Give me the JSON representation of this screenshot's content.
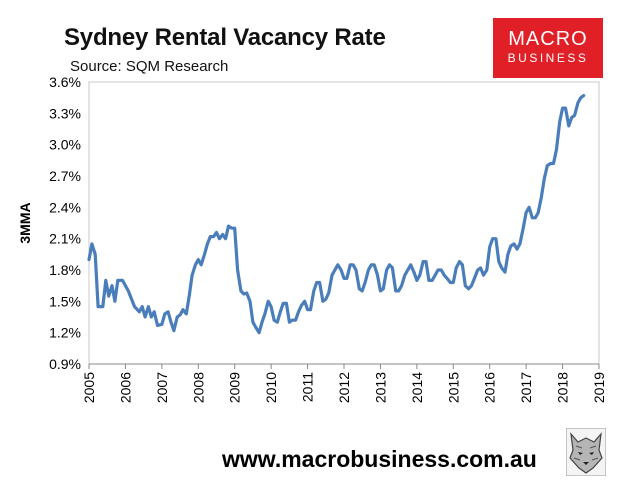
{
  "header": {
    "title": "Sydney Rental Vacancy Rate",
    "subtitle": "Source: SQM Research"
  },
  "logo": {
    "line1": "MACRO",
    "line2": "BUSINESS",
    "bg_color": "#e01f26"
  },
  "footer": {
    "url": "www.macrobusiness.com.au",
    "icon": "wolf-icon"
  },
  "chart_data": {
    "type": "line",
    "title": "Sydney Rental Vacancy Rate",
    "ylabel": "3MMA",
    "xlabel": "",
    "ylim": [
      0.9,
      3.6
    ],
    "y_ticks": [
      "0.9%",
      "1.2%",
      "1.5%",
      "1.8%",
      "2.1%",
      "2.4%",
      "2.7%",
      "3.0%",
      "3.3%",
      "3.6%"
    ],
    "x_ticks": [
      "2005",
      "2006",
      "2007",
      "2008",
      "2009",
      "2010",
      "2011",
      "2012",
      "2013",
      "2014",
      "2015",
      "2016",
      "2017",
      "2018",
      "2019"
    ],
    "xlim": [
      2005,
      2019
    ],
    "grid": false,
    "line_color": "#4a7ebb",
    "series": [
      {
        "values": [
          [
            2005.0,
            1.9
          ],
          [
            2005.08,
            2.05
          ],
          [
            2005.17,
            1.95
          ],
          [
            2005.25,
            1.45
          ],
          [
            2005.38,
            1.45
          ],
          [
            2005.46,
            1.7
          ],
          [
            2005.54,
            1.55
          ],
          [
            2005.63,
            1.65
          ],
          [
            2005.71,
            1.5
          ],
          [
            2005.79,
            1.7
          ],
          [
            2005.92,
            1.7
          ],
          [
            2006.08,
            1.6
          ],
          [
            2006.25,
            1.45
          ],
          [
            2006.38,
            1.4
          ],
          [
            2006.46,
            1.45
          ],
          [
            2006.54,
            1.35
          ],
          [
            2006.63,
            1.45
          ],
          [
            2006.71,
            1.35
          ],
          [
            2006.79,
            1.4
          ],
          [
            2006.88,
            1.27
          ],
          [
            2007.0,
            1.28
          ],
          [
            2007.08,
            1.38
          ],
          [
            2007.17,
            1.4
          ],
          [
            2007.25,
            1.3
          ],
          [
            2007.33,
            1.22
          ],
          [
            2007.42,
            1.35
          ],
          [
            2007.5,
            1.37
          ],
          [
            2007.58,
            1.42
          ],
          [
            2007.67,
            1.38
          ],
          [
            2007.75,
            1.55
          ],
          [
            2007.83,
            1.75
          ],
          [
            2007.92,
            1.85
          ],
          [
            2008.0,
            1.9
          ],
          [
            2008.08,
            1.85
          ],
          [
            2008.17,
            1.95
          ],
          [
            2008.25,
            2.05
          ],
          [
            2008.33,
            2.12
          ],
          [
            2008.42,
            2.12
          ],
          [
            2008.5,
            2.16
          ],
          [
            2008.58,
            2.1
          ],
          [
            2008.67,
            2.14
          ],
          [
            2008.75,
            2.1
          ],
          [
            2008.83,
            2.22
          ],
          [
            2008.92,
            2.2
          ],
          [
            2009.0,
            2.2
          ],
          [
            2009.08,
            1.8
          ],
          [
            2009.17,
            1.6
          ],
          [
            2009.25,
            1.57
          ],
          [
            2009.33,
            1.58
          ],
          [
            2009.42,
            1.5
          ],
          [
            2009.5,
            1.3
          ],
          [
            2009.58,
            1.25
          ],
          [
            2009.67,
            1.2
          ],
          [
            2009.75,
            1.3
          ],
          [
            2009.83,
            1.38
          ],
          [
            2009.92,
            1.5
          ],
          [
            2010.0,
            1.45
          ],
          [
            2010.08,
            1.32
          ],
          [
            2010.17,
            1.3
          ],
          [
            2010.25,
            1.4
          ],
          [
            2010.33,
            1.48
          ],
          [
            2010.42,
            1.48
          ],
          [
            2010.5,
            1.3
          ],
          [
            2010.58,
            1.32
          ],
          [
            2010.67,
            1.32
          ],
          [
            2010.75,
            1.4
          ],
          [
            2010.83,
            1.46
          ],
          [
            2010.92,
            1.5
          ],
          [
            2011.0,
            1.42
          ],
          [
            2011.08,
            1.42
          ],
          [
            2011.17,
            1.6
          ],
          [
            2011.25,
            1.68
          ],
          [
            2011.33,
            1.68
          ],
          [
            2011.42,
            1.5
          ],
          [
            2011.5,
            1.52
          ],
          [
            2011.58,
            1.58
          ],
          [
            2011.67,
            1.75
          ],
          [
            2011.75,
            1.8
          ],
          [
            2011.83,
            1.85
          ],
          [
            2011.92,
            1.8
          ],
          [
            2012.0,
            1.72
          ],
          [
            2012.08,
            1.72
          ],
          [
            2012.17,
            1.85
          ],
          [
            2012.25,
            1.85
          ],
          [
            2012.33,
            1.8
          ],
          [
            2012.42,
            1.62
          ],
          [
            2012.5,
            1.6
          ],
          [
            2012.58,
            1.68
          ],
          [
            2012.67,
            1.8
          ],
          [
            2012.75,
            1.85
          ],
          [
            2012.83,
            1.85
          ],
          [
            2012.92,
            1.75
          ],
          [
            2013.0,
            1.6
          ],
          [
            2013.08,
            1.62
          ],
          [
            2013.17,
            1.8
          ],
          [
            2013.25,
            1.85
          ],
          [
            2013.33,
            1.82
          ],
          [
            2013.42,
            1.6
          ],
          [
            2013.5,
            1.6
          ],
          [
            2013.58,
            1.65
          ],
          [
            2013.67,
            1.75
          ],
          [
            2013.75,
            1.8
          ],
          [
            2013.83,
            1.85
          ],
          [
            2013.92,
            1.78
          ],
          [
            2014.0,
            1.7
          ],
          [
            2014.08,
            1.75
          ],
          [
            2014.17,
            1.88
          ],
          [
            2014.25,
            1.88
          ],
          [
            2014.33,
            1.7
          ],
          [
            2014.42,
            1.7
          ],
          [
            2014.5,
            1.75
          ],
          [
            2014.58,
            1.8
          ],
          [
            2014.67,
            1.8
          ],
          [
            2014.75,
            1.75
          ],
          [
            2014.83,
            1.72
          ],
          [
            2014.92,
            1.68
          ],
          [
            2015.0,
            1.68
          ],
          [
            2015.08,
            1.82
          ],
          [
            2015.17,
            1.88
          ],
          [
            2015.25,
            1.85
          ],
          [
            2015.33,
            1.65
          ],
          [
            2015.42,
            1.62
          ],
          [
            2015.5,
            1.65
          ],
          [
            2015.58,
            1.72
          ],
          [
            2015.67,
            1.8
          ],
          [
            2015.75,
            1.82
          ],
          [
            2015.83,
            1.75
          ],
          [
            2015.92,
            1.8
          ],
          [
            2016.0,
            2.02
          ],
          [
            2016.08,
            2.1
          ],
          [
            2016.17,
            2.1
          ],
          [
            2016.25,
            1.88
          ],
          [
            2016.33,
            1.82
          ],
          [
            2016.42,
            1.78
          ],
          [
            2016.5,
            1.95
          ],
          [
            2016.58,
            2.03
          ],
          [
            2016.67,
            2.05
          ],
          [
            2016.75,
            2.0
          ],
          [
            2016.83,
            2.05
          ],
          [
            2016.92,
            2.2
          ],
          [
            2017.0,
            2.35
          ],
          [
            2017.08,
            2.4
          ],
          [
            2017.17,
            2.3
          ],
          [
            2017.25,
            2.3
          ],
          [
            2017.33,
            2.35
          ],
          [
            2017.42,
            2.5
          ],
          [
            2017.5,
            2.68
          ],
          [
            2017.58,
            2.8
          ],
          [
            2017.67,
            2.82
          ],
          [
            2017.75,
            2.82
          ],
          [
            2017.83,
            2.95
          ],
          [
            2017.92,
            3.22
          ],
          [
            2018.0,
            3.35
          ],
          [
            2018.08,
            3.35
          ],
          [
            2018.17,
            3.18
          ],
          [
            2018.25,
            3.26
          ],
          [
            2018.33,
            3.28
          ],
          [
            2018.42,
            3.4
          ],
          [
            2018.5,
            3.45
          ],
          [
            2018.58,
            3.47
          ]
        ]
      }
    ]
  }
}
